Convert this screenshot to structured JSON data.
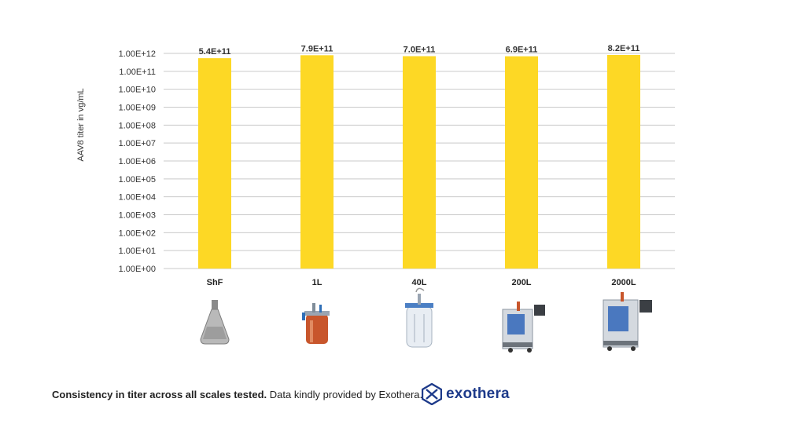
{
  "chart_data": {
    "type": "bar",
    "categories": [
      "ShF",
      "1L",
      "40L",
      "200L",
      "2000L"
    ],
    "values": [
      540000000000.0,
      790000000000.0,
      700000000000.0,
      690000000000.0,
      820000000000.0
    ],
    "data_labels": [
      "5.4E+11",
      "7.9E+11",
      "7.0E+11",
      "6.9E+11",
      "8.2E+11"
    ],
    "yscale": "log",
    "ylim": [
      1,
      1000000000000.0
    ],
    "yticks": [
      "1.00E+00",
      "1.00E+01",
      "1.00E+02",
      "1.00E+03",
      "1.00E+04",
      "1.00E+05",
      "1.00E+06",
      "1.00E+07",
      "1.00E+08",
      "1.00E+09",
      "1.00E+10",
      "1.00E+11",
      "1.00E+12"
    ],
    "ylabel": "AAV8 titer in vg/mL",
    "grid": true,
    "bar_color": "#FDD825"
  },
  "vessel_icons": [
    "shake-flask-icon",
    "1l-bioreactor-icon",
    "40l-bioreactor-icon",
    "200l-bioreactor-icon",
    "2000l-bioreactor-icon"
  ],
  "caption": {
    "bold": "Consistency in titer across all scales tested.",
    "regular": "Data kindly provided by Exothera."
  },
  "brand": {
    "name": "exothera",
    "color": "#1d3a8a"
  }
}
